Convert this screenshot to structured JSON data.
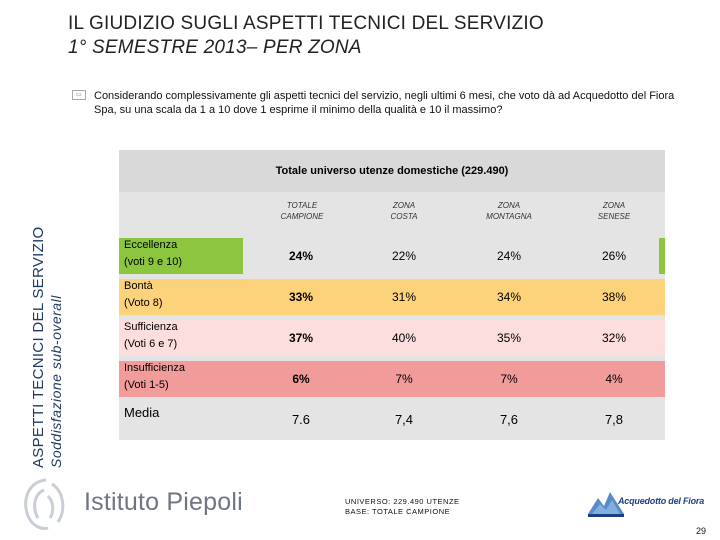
{
  "title": {
    "line1": "IL GIUDIZIO SUGLI ASPETTI TECNICI DEL SERVIZIO",
    "line2": "1° SEMESTRE 2013– PER ZONA"
  },
  "side_title": {
    "line1": "ASPETTI TECNICI DEL SERVIZIO",
    "line2": "Soddisfazione sub-overall"
  },
  "question": "Considerando complessivamente gli aspetti tecnici del servizio, negli ultimi 6 mesi, che voto dà ad Acquedotto del Fiora Spa, su una scala da 1 a 10 dove 1 esprime il minimo della qualità e 10 il massimo?",
  "table": {
    "header": "Totale universo utenze domestiche (229.490)",
    "columns": [
      {
        "line1": "TOTALE",
        "line2": "CAMPIONE"
      },
      {
        "line1": "ZONA",
        "line2": "COSTA"
      },
      {
        "line1": "ZONA",
        "line2": "MONTAGNA"
      },
      {
        "line1": "ZONA",
        "line2": "SENESE"
      }
    ],
    "rows": [
      {
        "label": "Eccellenza",
        "sub": "(voti 9 e 10)",
        "values": [
          "24%",
          "22%",
          "24%",
          "26%"
        ],
        "color": "#8cc63f"
      },
      {
        "label": "Bontà",
        "sub": "(Voto 8)",
        "values": [
          "33%",
          "31%",
          "34%",
          "38%"
        ],
        "color": "#fcd37a"
      },
      {
        "label": "Sufficienza",
        "sub": "(Voti 6 e 7)",
        "values": [
          "37%",
          "40%",
          "35%",
          "32%"
        ],
        "color": "#fcdede"
      },
      {
        "label": "Insufficienza",
        "sub": "(Voti 1-5)",
        "values": [
          "6%",
          "7%",
          "7%",
          "4%"
        ],
        "color": "#f29b9b"
      },
      {
        "label": "Media",
        "sub": "",
        "values": [
          "7.6",
          "7,4",
          "7,6",
          "7,8"
        ],
        "color": "#e4e4e4"
      }
    ]
  },
  "footnote": {
    "line1": "UNIVERSO: 229.490 UTENZE",
    "line2": "BASE: TOTALE CAMPIONE"
  },
  "logos": {
    "left": "Istituto Piepoli",
    "right": "Acquedotto del Fiora"
  },
  "page_number": "29",
  "colors": {
    "accent": "#1f3a63",
    "excellence": "#8cc63f",
    "good": "#fcd37a",
    "sufficient": "#fcdede",
    "insufficient": "#f29b9b"
  }
}
